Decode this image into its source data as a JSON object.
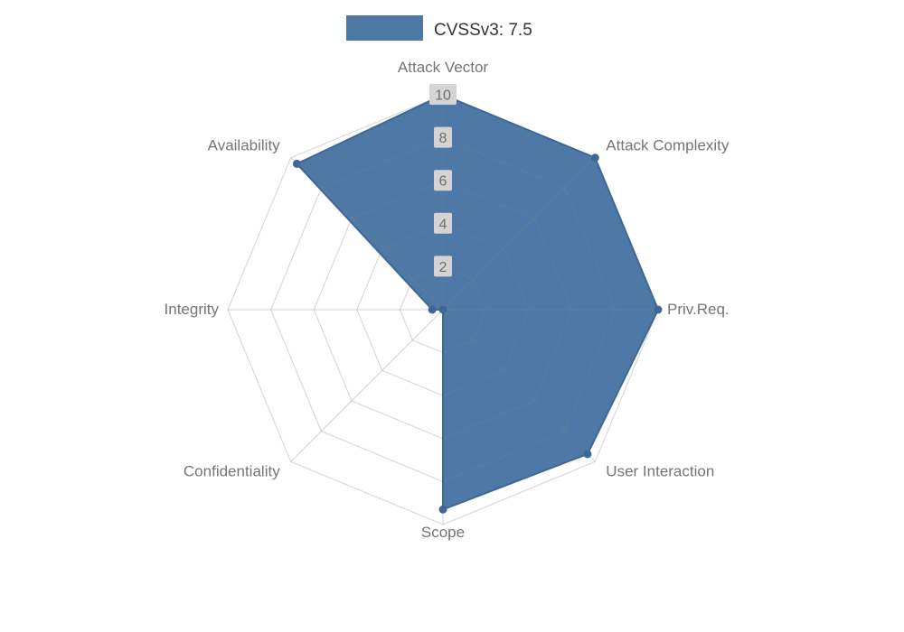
{
  "legend": {
    "label": "CVSSv3: 7.5"
  },
  "colors": {
    "series": "#4e79a7",
    "series_stroke": "#3f6795",
    "grid_line": "#808080",
    "axis_label": "#757575",
    "tick_bg": "#d4d4d4",
    "tick_text": "#6e6e6e",
    "legend_text": "#333333",
    "background": "#ffffff"
  },
  "chart_data": {
    "type": "radar",
    "title": "CVSSv3: 7.5",
    "legend_position": "top",
    "grid": true,
    "range": [
      0,
      10
    ],
    "ticks": [
      2,
      4,
      6,
      8,
      10
    ],
    "max": 10,
    "categories": [
      "Attack Vector",
      "Attack Complexity",
      "Priv.Req.",
      "User Interaction",
      "Scope",
      "Confidentiality",
      "Integrity",
      "Availability"
    ],
    "series": [
      {
        "name": "CVSSv3: 7.5",
        "values": [
          10,
          10,
          10,
          9.5,
          9.3,
          0,
          0.5,
          9.6
        ]
      }
    ]
  }
}
